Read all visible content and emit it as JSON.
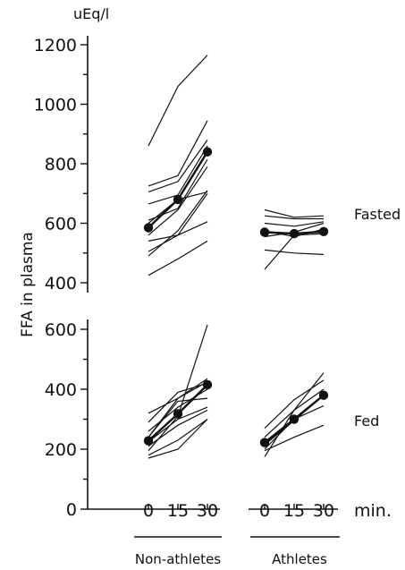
{
  "chart_data": {
    "type": "line",
    "unit_label": "uEq/l",
    "ylabel": "FFA in plasma",
    "x_ticks": [
      "0",
      "15",
      "30"
    ],
    "x_unit": "min.",
    "groups": [
      "Non-athletes",
      "Athletes"
    ],
    "panels": [
      {
        "label": "Fasted",
        "yticks": [
          400,
          600,
          800,
          1000,
          1200
        ],
        "ylim": [
          400,
          1200
        ],
        "groups": [
          {
            "name": "Non-athletes",
            "means": [
              585,
              680,
              840
            ],
            "individuals": [
              [
                860,
                1060,
                1165
              ],
              [
                725,
                760,
                945
              ],
              [
                705,
                740,
                880
              ],
              [
                665,
                695,
                860
              ],
              [
                610,
                650,
                815
              ],
              [
                560,
                645,
                790
              ],
              [
                600,
                680,
                705
              ],
              [
                540,
                560,
                700
              ],
              [
                490,
                575,
                710
              ],
              [
                505,
                560,
                605
              ],
              [
                425,
                480,
                540
              ]
            ]
          },
          {
            "name": "Athletes",
            "means": [
              570,
              565,
              572
            ],
            "individuals": [
              [
                645,
                620,
                625
              ],
              [
                625,
                615,
                615
              ],
              [
                600,
                590,
                605
              ],
              [
                575,
                555,
                580
              ],
              [
                555,
                570,
                600
              ],
              [
                510,
                500,
                495
              ],
              [
                445,
                560,
                565
              ]
            ]
          }
        ]
      },
      {
        "label": "Fed",
        "yticks": [
          0,
          200,
          400,
          600
        ],
        "ylim": [
          0,
          600
        ],
        "groups": [
          {
            "name": "Non-athletes",
            "means": [
              228,
              318,
              415
            ],
            "individuals": [
              [
                320,
                370,
                435
              ],
              [
                290,
                390,
                420
              ],
              [
                260,
                340,
                400
              ],
              [
                240,
                360,
                370
              ],
              [
                225,
                300,
                340
              ],
              [
                210,
                280,
                330
              ],
              [
                195,
                310,
                615
              ],
              [
                180,
                230,
                300
              ],
              [
                170,
                200,
                300
              ],
              [
                240,
                370,
                425
              ]
            ]
          },
          {
            "name": "Athletes",
            "means": [
              222,
              300,
              380
            ],
            "individuals": [
              [
                270,
                365,
                430
              ],
              [
                240,
                330,
                400
              ],
              [
                215,
                295,
                380
              ],
              [
                200,
                300,
                345
              ],
              [
                195,
                240,
                280
              ],
              [
                175,
                330,
                455
              ]
            ]
          }
        ]
      }
    ]
  }
}
